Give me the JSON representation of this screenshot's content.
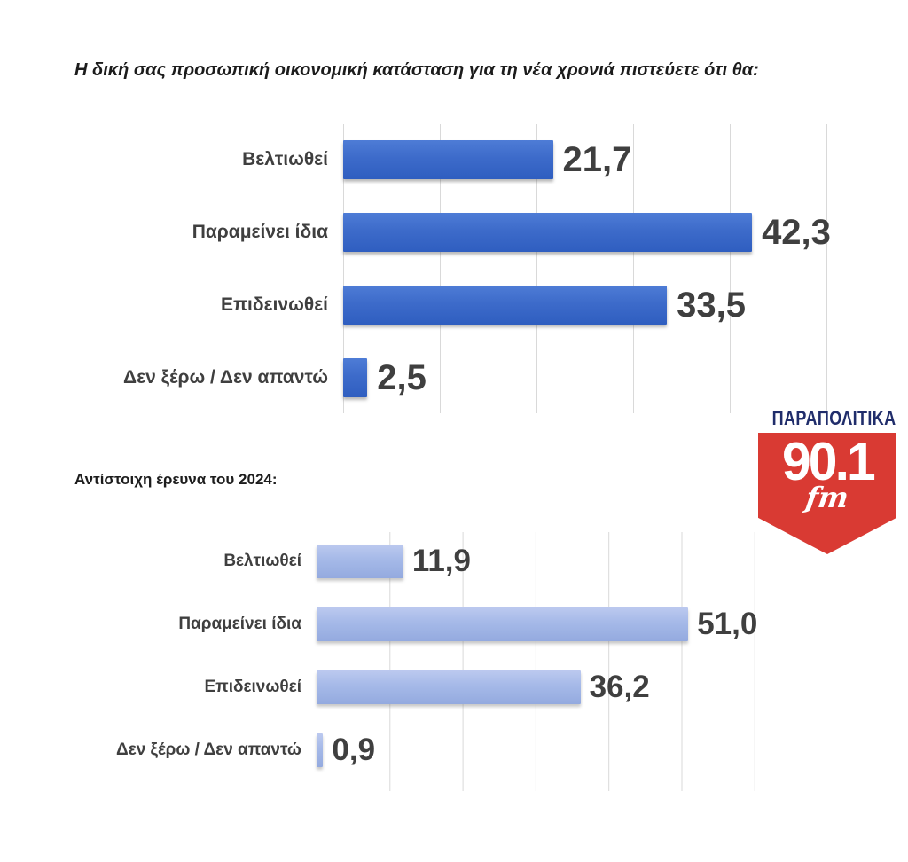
{
  "title": "Η δική σας προσωπική οικονομική κατάσταση για τη νέα χρονιά πιστεύετε ότι θα:",
  "section_2024_label": "Αντίστοιχη έρευνα του 2024:",
  "logo": {
    "wordmark": "ΠΑΡΑΠΟΛΙΤΙΚΑ",
    "frequency": "90.1",
    "band": "fm",
    "badge_color": "#d93a33",
    "wordmark_color": "#202d6b"
  },
  "colors": {
    "bar_current": "#3a67c6",
    "bar_2024": "#a5b9e8",
    "grid": "#d9d9d9",
    "text": "#3f3f3f"
  },
  "chart_data": [
    {
      "type": "bar",
      "orientation": "horizontal",
      "title": "Η δική σας προσωπική οικονομική κατάσταση για τη νέα χρονιά πιστεύετε ότι θα:",
      "categories": [
        "Βελτιωθεί",
        "Παραμείνει ίδια",
        "Επιδεινωθεί",
        "Δεν ξέρω / Δεν απαντώ"
      ],
      "values": [
        21.7,
        42.3,
        33.5,
        2.5
      ],
      "value_labels": [
        "21,7",
        "42,3",
        "33,5",
        "2,5"
      ],
      "xlim": [
        0,
        50
      ],
      "gridline_step": 10,
      "grid": true,
      "legend": "none",
      "bar_color": "#3a67c6"
    },
    {
      "type": "bar",
      "orientation": "horizontal",
      "title": "Αντίστοιχη έρευνα του 2024:",
      "categories": [
        "Βελτιωθεί",
        "Παραμείνει ίδια",
        "Επιδεινωθεί",
        "Δεν ξέρω / Δεν απαντώ"
      ],
      "values": [
        11.9,
        51.0,
        36.2,
        0.9
      ],
      "value_labels": [
        "11,9",
        "51,0",
        "36,2",
        "0,9"
      ],
      "xlim": [
        0,
        60
      ],
      "gridline_step": 10,
      "grid": true,
      "legend": "none",
      "bar_color": "#a5b9e8"
    }
  ]
}
